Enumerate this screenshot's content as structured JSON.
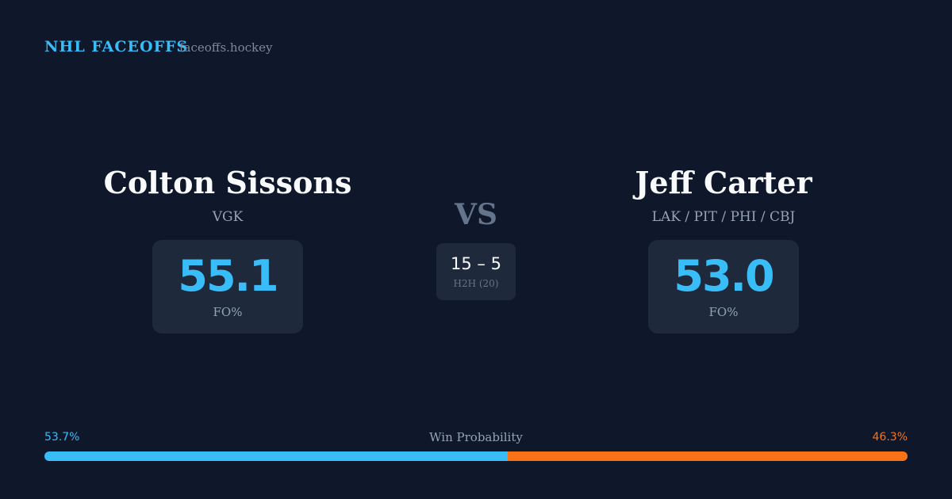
{
  "header": {
    "brand": "NHL FACEOFFS",
    "site": "faceoffs.hockey"
  },
  "players": [
    {
      "name": "Colton Sissons",
      "team": "VGK",
      "stat": "55.1",
      "stat_label": "FO%"
    },
    {
      "name": "Jeff Carter",
      "team": "LAK / PIT / PHI / CBJ",
      "stat": "53.0",
      "stat_label": "FO%"
    }
  ],
  "versus": "VS",
  "head_to_head": {
    "score": "15 – 5",
    "label": "H2H (20)"
  },
  "win_probability": {
    "title": "Win Probability",
    "values": [
      53.7,
      46.3
    ],
    "value_labels": [
      "53.7%",
      "46.3%"
    ],
    "colors": [
      "#38bdf8",
      "#f97316"
    ]
  }
}
